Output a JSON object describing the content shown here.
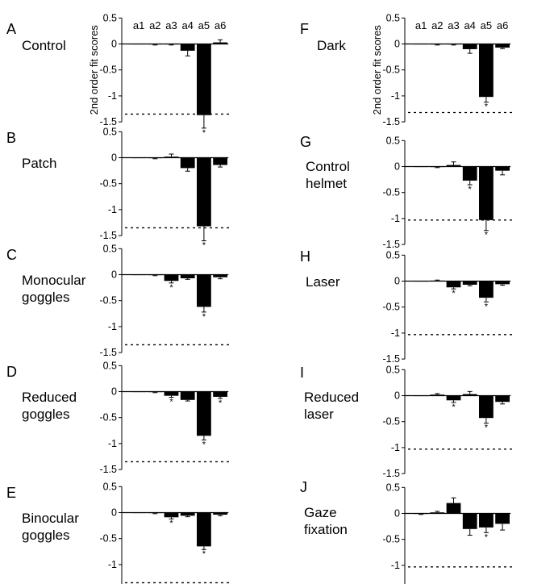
{
  "figure": {
    "ylabel": "2nd order fit scores",
    "ticks": [
      0.5,
      0,
      -0.5,
      -1,
      -1.5
    ],
    "tick_labels": [
      "0.5",
      "0",
      "-0.5",
      "-1",
      "-1.5"
    ],
    "categories": [
      "a1",
      "a2",
      "a3",
      "a4",
      "a5",
      "a6"
    ],
    "bar_color": "#000000"
  },
  "chart_data": [
    {
      "type": "bar",
      "panel": "A",
      "title_lines": [
        "Control"
      ],
      "categories": [
        "a1",
        "a2",
        "a3",
        "a4",
        "a5",
        "a6"
      ],
      "values": [
        0,
        -0.01,
        -0.01,
        -0.13,
        -1.37,
        0.03
      ],
      "errors": [
        0,
        0.01,
        0.01,
        0.1,
        0.25,
        0.05
      ],
      "significant": [
        false,
        false,
        false,
        false,
        true,
        false
      ],
      "reference_line": -1.35,
      "ylim": [
        -1.5,
        0.5
      ]
    },
    {
      "type": "bar",
      "panel": "B",
      "title_lines": [
        "Patch"
      ],
      "categories": [
        "a1",
        "a2",
        "a3",
        "a4",
        "a5",
        "a6"
      ],
      "values": [
        0,
        -0.01,
        0.02,
        -0.2,
        -1.32,
        -0.14
      ],
      "errors": [
        0,
        0.01,
        0.05,
        0.06,
        0.28,
        0.04
      ],
      "significant": [
        false,
        false,
        false,
        false,
        true,
        false
      ],
      "reference_line": -1.35,
      "ylim": [
        -1.5,
        0.5
      ]
    },
    {
      "type": "bar",
      "panel": "C",
      "title_lines": [
        "Monocular",
        "goggles"
      ],
      "categories": [
        "a1",
        "a2",
        "a3",
        "a4",
        "a5",
        "a6"
      ],
      "values": [
        0,
        -0.01,
        -0.12,
        -0.07,
        -0.62,
        -0.05
      ],
      "errors": [
        0,
        0.01,
        0.04,
        0.02,
        0.1,
        0.03
      ],
      "significant": [
        false,
        false,
        true,
        false,
        true,
        false
      ],
      "reference_line": -1.35,
      "ylim": [
        -1.5,
        0.5
      ]
    },
    {
      "type": "bar",
      "panel": "D",
      "title_lines": [
        "Reduced",
        "goggles"
      ],
      "categories": [
        "a1",
        "a2",
        "a3",
        "a4",
        "a5",
        "a6"
      ],
      "values": [
        0,
        -0.01,
        -0.08,
        -0.16,
        -0.85,
        -0.1
      ],
      "errors": [
        0,
        0.01,
        0.03,
        0.02,
        0.08,
        0.03
      ],
      "significant": [
        false,
        false,
        true,
        false,
        true,
        true
      ],
      "reference_line": -1.35,
      "ylim": [
        -1.5,
        0.5
      ]
    },
    {
      "type": "bar",
      "panel": "E",
      "title_lines": [
        "Binocular",
        "goggles"
      ],
      "categories": [
        "a1",
        "a2",
        "a3",
        "a4",
        "a5",
        "a6"
      ],
      "values": [
        0,
        -0.01,
        -0.09,
        -0.06,
        -0.65,
        -0.04
      ],
      "errors": [
        0,
        0.01,
        0.03,
        0.02,
        0.06,
        0.02
      ],
      "significant": [
        false,
        false,
        true,
        false,
        true,
        false
      ],
      "reference_line": -1.35,
      "ylim": [
        -1.5,
        0.5
      ]
    },
    {
      "type": "bar",
      "panel": "F",
      "title_lines": [
        "Dark"
      ],
      "categories": [
        "a1",
        "a2",
        "a3",
        "a4",
        "a5",
        "a6"
      ],
      "values": [
        0,
        -0.01,
        -0.01,
        -0.1,
        -1.02,
        -0.07
      ],
      "errors": [
        0,
        0.01,
        0.01,
        0.08,
        0.1,
        0.02
      ],
      "significant": [
        false,
        false,
        false,
        false,
        true,
        false
      ],
      "reference_line": -1.32,
      "ylim": [
        -1.5,
        0.5
      ]
    },
    {
      "type": "bar",
      "panel": "G",
      "title_lines": [
        "Control",
        "helmet"
      ],
      "categories": [
        "a1",
        "a2",
        "a3",
        "a4",
        "a5",
        "a6"
      ],
      "values": [
        0,
        -0.01,
        0.03,
        -0.27,
        -1.03,
        -0.08
      ],
      "errors": [
        0,
        0.01,
        0.06,
        0.08,
        0.2,
        0.08
      ],
      "significant": [
        false,
        false,
        false,
        true,
        true,
        false
      ],
      "reference_line": -1.03,
      "ylim": [
        -1.5,
        0.5
      ]
    },
    {
      "type": "bar",
      "panel": "H",
      "title_lines": [
        "Laser"
      ],
      "categories": [
        "a1",
        "a2",
        "a3",
        "a4",
        "a5",
        "a6"
      ],
      "values": [
        0,
        0.01,
        -0.12,
        -0.07,
        -0.32,
        -0.06
      ],
      "errors": [
        0,
        0.01,
        0.03,
        0.02,
        0.08,
        0.02
      ],
      "significant": [
        false,
        false,
        true,
        false,
        true,
        false
      ],
      "reference_line": -1.03,
      "ylim": [
        -1.5,
        0.5
      ]
    },
    {
      "type": "bar",
      "panel": "I",
      "title_lines": [
        "Reduced",
        "laser"
      ],
      "categories": [
        "a1",
        "a2",
        "a3",
        "a4",
        "a5",
        "a6"
      ],
      "values": [
        0,
        0.02,
        -0.09,
        0.03,
        -0.43,
        -0.12
      ],
      "errors": [
        0,
        0.02,
        0.04,
        0.05,
        0.1,
        0.04
      ],
      "significant": [
        false,
        false,
        true,
        false,
        true,
        false
      ],
      "reference_line": -1.03,
      "ylim": [
        -1.5,
        0.5
      ]
    },
    {
      "type": "bar",
      "panel": "J",
      "title_lines": [
        "Gaze",
        "fixation"
      ],
      "categories": [
        "a1",
        "a2",
        "a3",
        "a4",
        "a5",
        "a6"
      ],
      "values": [
        -0.01,
        0.02,
        0.2,
        -0.3,
        -0.27,
        -0.2
      ],
      "errors": [
        0.01,
        0.02,
        0.1,
        0.12,
        0.1,
        0.12
      ],
      "significant": [
        false,
        false,
        false,
        false,
        true,
        false
      ],
      "reference_line": -1.03,
      "ylim": [
        -1.5,
        0.5
      ]
    }
  ]
}
